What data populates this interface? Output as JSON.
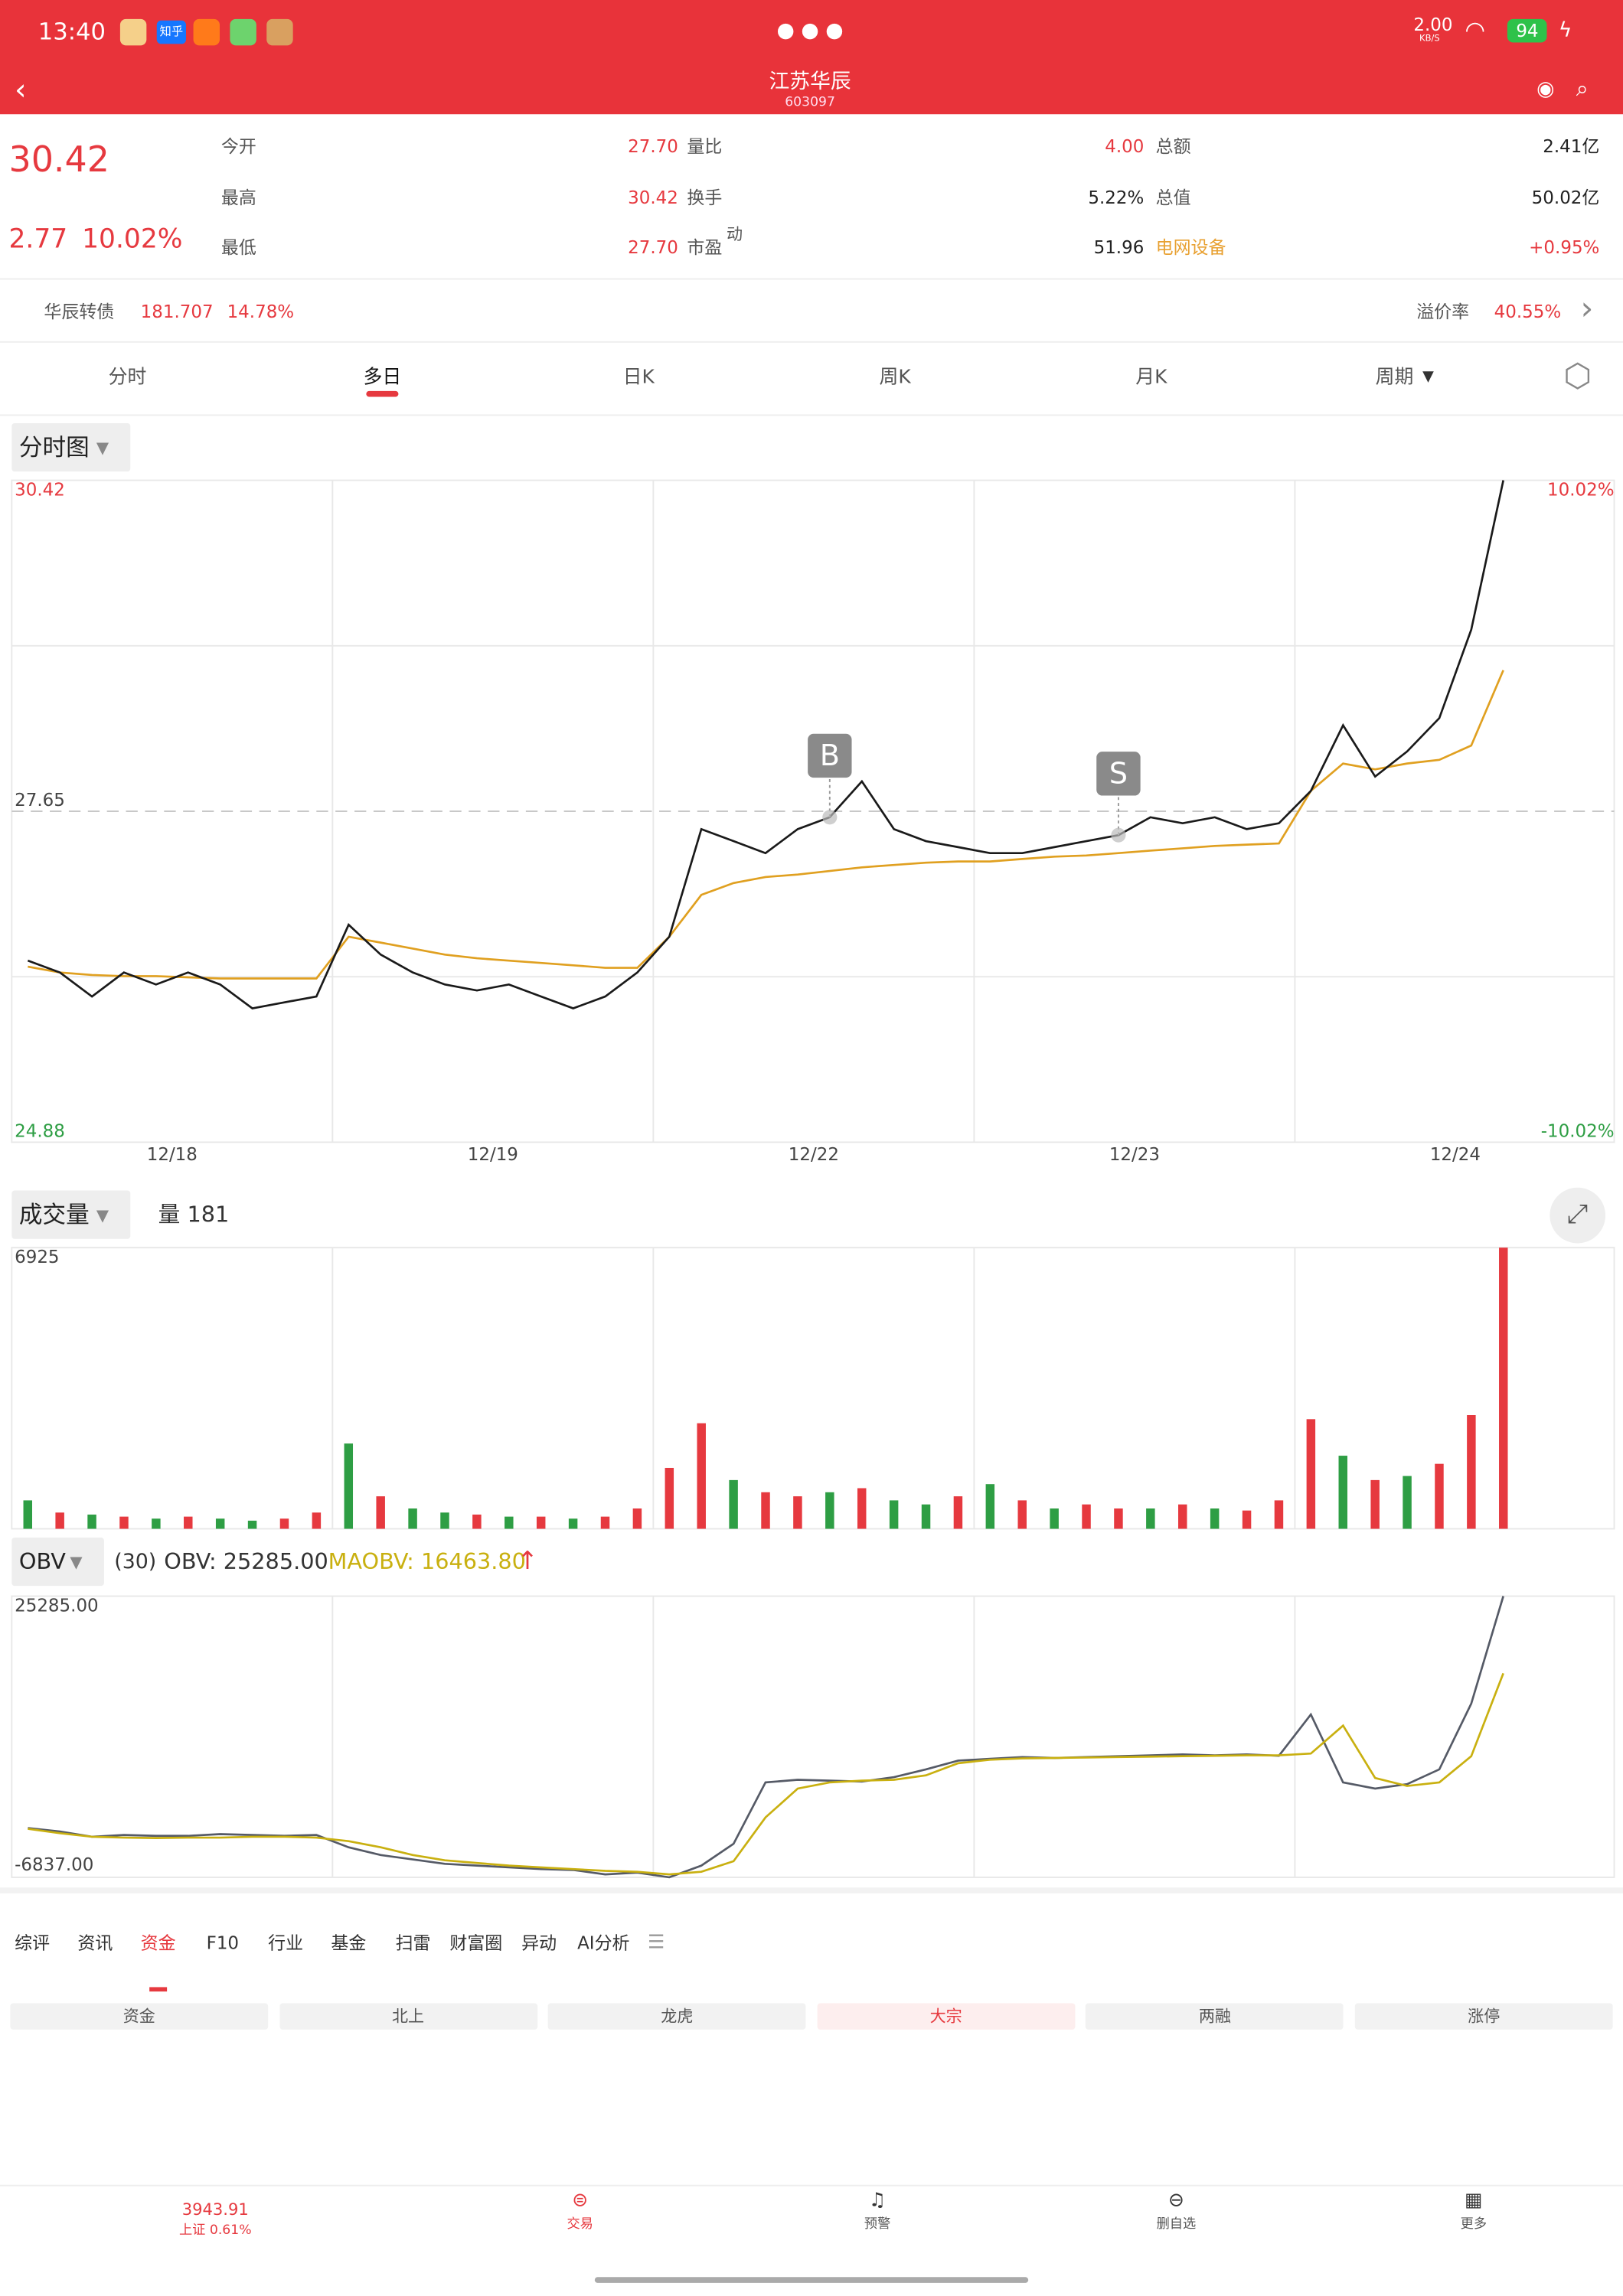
{
  "status": {
    "time": "13:40",
    "app_badge": "知乎",
    "speed": "2.00",
    "speed_unit": "KB/S",
    "battery": "94"
  },
  "header": {
    "title": "江苏华辰",
    "code": "603097"
  },
  "quote": {
    "price": "30.42",
    "change": "2.77",
    "change_pct": "10.02%",
    "stats": [
      [
        {
          "label": "今开",
          "value": "27.70"
        },
        {
          "label": "量比",
          "value": "4.00"
        },
        {
          "label": "总额",
          "value": "2.41亿"
        }
      ],
      [
        {
          "label": "最高",
          "value": "30.42"
        },
        {
          "label": "换手",
          "value": "5.22%"
        },
        {
          "label": "总值",
          "value": "50.02亿"
        }
      ],
      [
        {
          "label": "最低",
          "value": "27.70"
        },
        {
          "label": "市盈",
          "sup": "动",
          "value": "51.96"
        },
        {
          "label": "电网设备",
          "value": "+0.95%"
        }
      ]
    ]
  },
  "bond": {
    "name": "华辰转债",
    "price": "181.707",
    "pct": "14.78%",
    "premium_label": "溢价率",
    "premium": "40.55%"
  },
  "tabs": {
    "items": [
      "分时",
      "多日",
      "日K",
      "周K",
      "月K",
      "周期"
    ],
    "active": 1
  },
  "chart_data": [
    {
      "type": "line",
      "title": "分时图",
      "days": [
        "12/18",
        "12/19",
        "12/22",
        "12/23",
        "12/24"
      ],
      "ylim": [
        24.88,
        30.42
      ],
      "yticks": [
        30.42,
        27.65,
        24.88
      ],
      "y2lim": [
        -10.02,
        10.02
      ],
      "y2ticks": [
        {
          "value": 10.02,
          "label": "10.02%"
        },
        {
          "value": -10.02,
          "label": "-10.02%"
        }
      ],
      "markers": [
        {
          "label": "B",
          "at": 25
        },
        {
          "label": "S",
          "at": 34
        }
      ],
      "series": [
        {
          "color": "#1a1a1a",
          "values": [
            26.4,
            26.3,
            26.1,
            26.3,
            26.2,
            26.3,
            26.2,
            26.0,
            26.05,
            26.1,
            26.7,
            26.45,
            26.3,
            26.2,
            26.15,
            26.2,
            26.1,
            26.0,
            26.1,
            26.3,
            26.6,
            27.5,
            27.4,
            27.3,
            27.5,
            27.6,
            27.9,
            27.5,
            27.4,
            27.35,
            27.3,
            27.3,
            27.35,
            27.4,
            27.45,
            27.6,
            27.55,
            27.6,
            27.5,
            27.55,
            27.82,
            28.37,
            27.94,
            28.15,
            28.43,
            29.17,
            30.42,
            null,
            null,
            null
          ]
        },
        {
          "color": "#e0a020",
          "values": [
            26.35,
            26.3,
            26.28,
            26.27,
            26.27,
            26.26,
            26.25,
            26.25,
            26.25,
            26.25,
            26.6,
            26.55,
            26.5,
            26.45,
            26.42,
            26.4,
            26.38,
            26.36,
            26.34,
            26.34,
            26.6,
            26.95,
            27.05,
            27.1,
            27.12,
            27.15,
            27.18,
            27.2,
            27.22,
            27.23,
            27.23,
            27.25,
            27.27,
            27.28,
            27.3,
            27.32,
            27.34,
            27.36,
            27.37,
            27.38,
            27.82,
            28.05,
            28.0,
            28.05,
            28.08,
            28.2,
            28.83,
            null,
            null,
            null
          ]
        }
      ]
    },
    {
      "type": "bar",
      "title": "成交量",
      "label": "量 181",
      "ylim": [
        0,
        6925
      ],
      "yticks": [
        6925
      ],
      "colors": {
        "up": "#e6393f",
        "down": "#2e9e44"
      },
      "values": [
        700,
        400,
        350,
        300,
        250,
        300,
        250,
        200,
        250,
        400,
        2100,
        800,
        500,
        400,
        350,
        300,
        300,
        250,
        300,
        500,
        1500,
        2600,
        1200,
        900,
        800,
        900,
        1000,
        700,
        600,
        800,
        1100,
        700,
        500,
        600,
        500,
        500,
        600,
        500,
        450,
        700,
        2700,
        1800,
        1200,
        1300,
        1600,
        2800,
        6925,
        null,
        null,
        null
      ],
      "up": [
        false,
        true,
        false,
        true,
        false,
        true,
        false,
        false,
        true,
        true,
        false,
        true,
        false,
        false,
        true,
        false,
        true,
        false,
        true,
        true,
        true,
        true,
        false,
        true,
        true,
        false,
        true,
        false,
        false,
        true,
        false,
        true,
        false,
        true,
        true,
        false,
        true,
        false,
        true,
        true,
        true,
        false,
        true,
        false,
        true,
        true,
        true,
        null,
        null,
        null
      ]
    },
    {
      "type": "line",
      "title": "OBV",
      "params": "(30)",
      "legend": [
        "OBV: 25285.00",
        "MAOBV: 16463.80"
      ],
      "ylim": [
        -6837,
        25285
      ],
      "yticks": [
        {
          "value": 25285,
          "label": "25285.00"
        },
        {
          "value": -6837,
          "label": "-6837.00"
        }
      ],
      "series": [
        {
          "color": "#555a66",
          "values": [
            -1220,
            -1600,
            -2200,
            -2000,
            -2100,
            -2100,
            -1900,
            -2000,
            -2100,
            -2000,
            -3400,
            -4300,
            -4800,
            -5300,
            -5500,
            -5700,
            -5900,
            -6000,
            -6500,
            -6300,
            -6837,
            -5500,
            -3000,
            4000,
            4300,
            4200,
            4100,
            4600,
            5500,
            6500,
            6700,
            6900,
            6800,
            6900,
            7000,
            7100,
            7200,
            7100,
            7200,
            7050,
            11765,
            4000,
            3300,
            3800,
            5500,
            13000,
            25285,
            null,
            null,
            null
          ]
        },
        {
          "color": "#c9b010",
          "values": [
            -1300,
            -1800,
            -2200,
            -2300,
            -2350,
            -2300,
            -2300,
            -2200,
            -2200,
            -2300,
            -2700,
            -3400,
            -4300,
            -4900,
            -5200,
            -5500,
            -5700,
            -5900,
            -6100,
            -6200,
            -6500,
            -6200,
            -5000,
            0,
            3300,
            4000,
            4200,
            4300,
            4800,
            6200,
            6600,
            6750,
            6800,
            6850,
            6900,
            6950,
            7000,
            7050,
            7100,
            7100,
            7300,
            10500,
            4500,
            3600,
            4000,
            7000,
            16463.8,
            null,
            null,
            null
          ]
        }
      ]
    }
  ],
  "info_tabs": {
    "items": [
      "综评",
      "资讯",
      "资金",
      "F10",
      "行业",
      "基金",
      "扫雷",
      "财富圈",
      "异动",
      "AI分析"
    ],
    "active": 2
  },
  "sub_tabs": {
    "items": [
      "资金",
      "北上",
      "龙虎",
      "大宗",
      "两融",
      "涨停"
    ],
    "active": 3
  },
  "nav": {
    "index": "3943.91",
    "index_sub": "上证 0.61%",
    "items": [
      "交易",
      "预警",
      "删自选",
      "更多"
    ]
  }
}
